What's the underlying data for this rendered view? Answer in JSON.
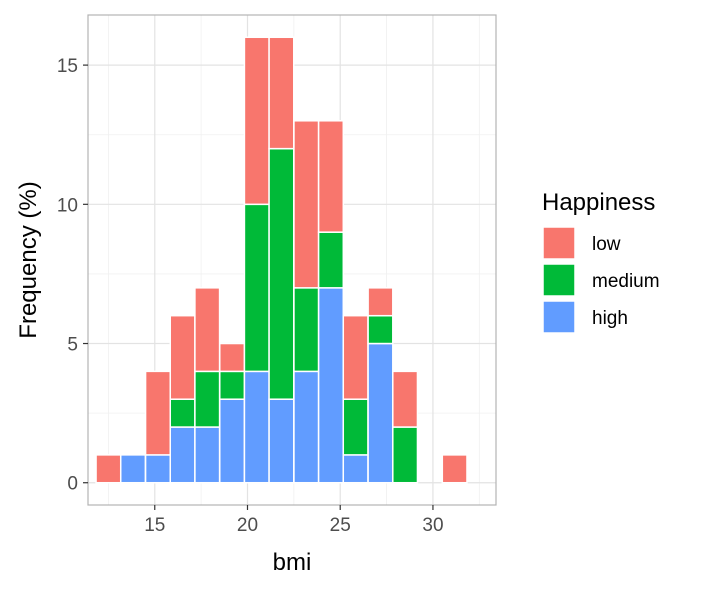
{
  "chart_data": {
    "type": "bar",
    "stacked": true,
    "xlabel": "bmi",
    "ylabel": "Frequency (%)",
    "xlim": [
      11.4,
      33.4
    ],
    "ylim": [
      -0.8,
      16.8
    ],
    "x_ticks": [
      15,
      20,
      25,
      30
    ],
    "y_ticks": [
      0,
      5,
      10,
      15
    ],
    "grid": true,
    "bin_width": 1.33,
    "bins": [
      12.5,
      13.83,
      15.17,
      16.5,
      17.83,
      19.17,
      20.5,
      21.83,
      23.17,
      24.5,
      25.83,
      27.17,
      28.5,
      29.83,
      31.17,
      32.5
    ],
    "series": [
      {
        "name": "low",
        "color": "#F8766D",
        "values": [
          1,
          0,
          3,
          3,
          3,
          1,
          6,
          4,
          6,
          4,
          3,
          1,
          2,
          0,
          1,
          0
        ]
      },
      {
        "name": "medium",
        "color": "#00BA38",
        "values": [
          0,
          0,
          0,
          1,
          2,
          1,
          6,
          9,
          3,
          2,
          2,
          1,
          2,
          0,
          0,
          0
        ]
      },
      {
        "name": "high",
        "color": "#619CFF",
        "values": [
          0,
          1,
          1,
          2,
          2,
          3,
          4,
          3,
          4,
          7,
          1,
          5,
          0,
          0,
          0,
          0
        ]
      }
    ],
    "legend": {
      "title": "Happiness",
      "position": "right"
    }
  }
}
